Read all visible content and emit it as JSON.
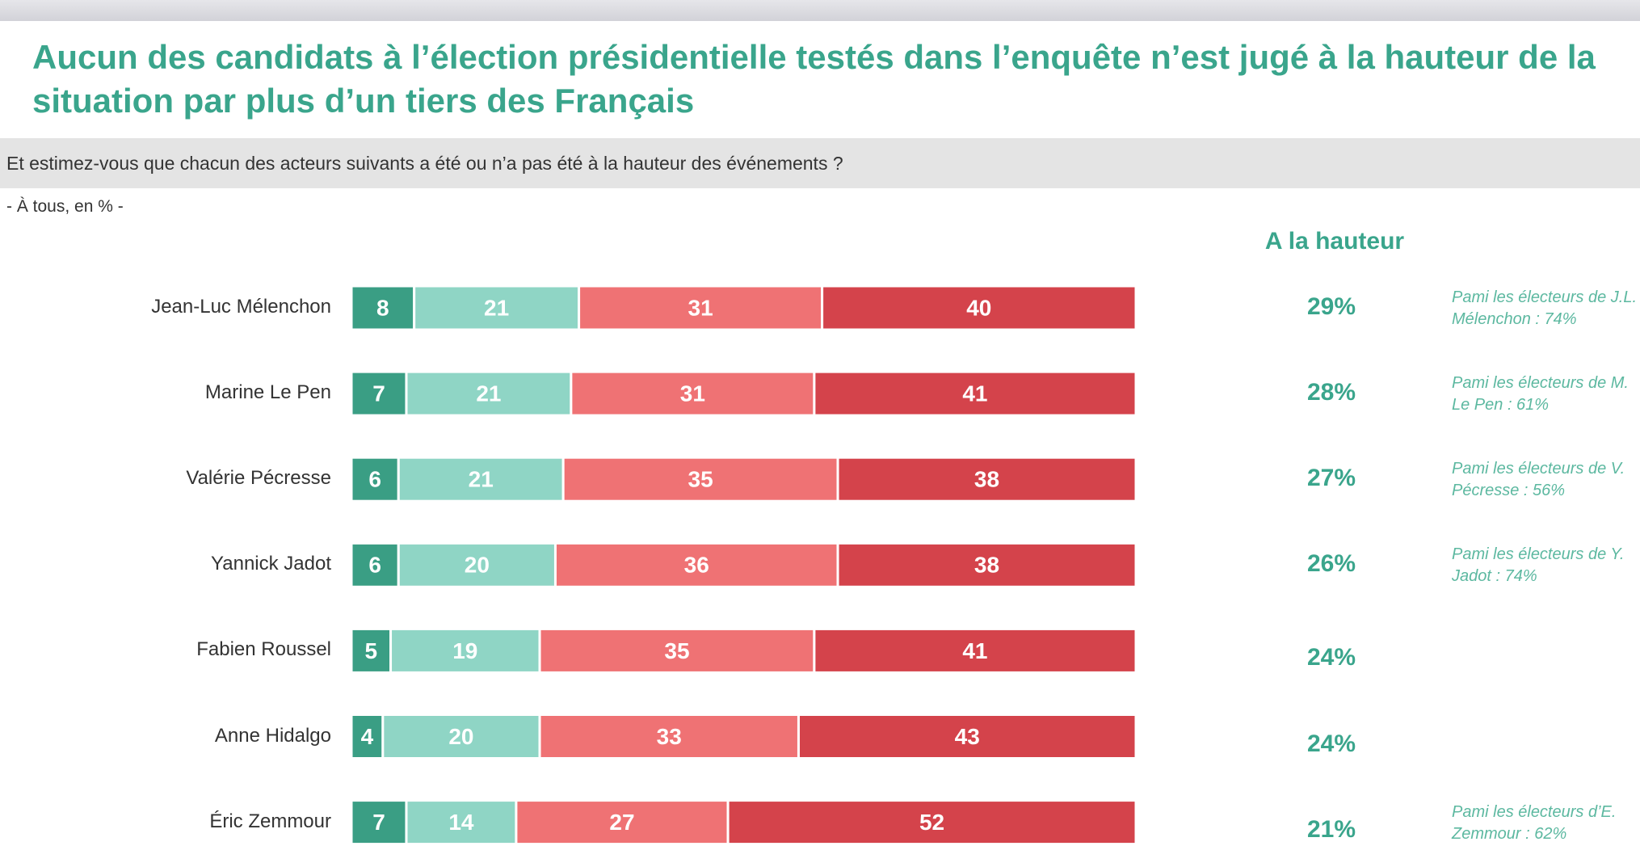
{
  "chart_data": {
    "type": "stacked-hbar",
    "title": "Aucun des candidats à l’élection présidentielle testés dans l’enquête n’est jugé à la hauteur de la situation par plus d’un tiers des Français",
    "subtitle": "Et estimez-vous que chacun des acteurs suivants a été ou n’a pas été à la hauteur des événements ?",
    "base_note": "- À tous, en % -",
    "categories": [
      "Jean-Luc Mélenchon",
      "Marine Le Pen",
      "Valérie Pécresse",
      "Yannick Jadot",
      "Fabien Roussel",
      "Anne Hidalgo",
      "Éric Zemmour"
    ],
    "series": [
      {
        "color": "#3a9e84",
        "values": [
          8,
          7,
          6,
          6,
          5,
          4,
          7
        ]
      },
      {
        "color": "#8fd5c5",
        "values": [
          21,
          21,
          21,
          20,
          19,
          20,
          14
        ]
      },
      {
        "color": "#ef7274",
        "values": [
          31,
          31,
          35,
          36,
          35,
          33,
          27
        ]
      },
      {
        "color": "#d4434b",
        "values": [
          40,
          41,
          38,
          38,
          41,
          43,
          52
        ]
      }
    ],
    "xlim": [
      0,
      100
    ],
    "totals": {
      "title": "A la hauteur",
      "labels": [
        "29%",
        "28%",
        "27%",
        "26%",
        "24%",
        "24%",
        "21%"
      ]
    },
    "notes": [
      "Pami les électeurs de J.L. Mélenchon : 74%",
      "Pami les électeurs de M. Le Pen : 61%",
      "Pami les électeurs de V. Pécresse : 56%",
      "Pami les électeurs de Y. Jadot : 74%",
      null,
      null,
      "Pami les électeurs d’E. Zemmour : 62%"
    ]
  }
}
